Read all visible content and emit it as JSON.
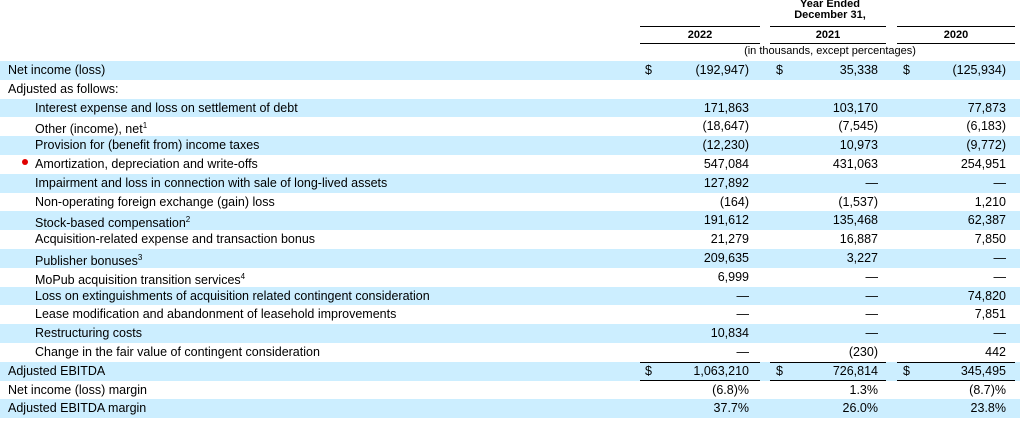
{
  "header": {
    "period": "Year Ended",
    "date": "December 31,",
    "years": [
      "2022",
      "2021",
      "2020"
    ],
    "unit_note": "(in thousands, except percentages)"
  },
  "net_income": {
    "label": "Net income (loss)",
    "currency": "$",
    "values": [
      "(192,947)",
      "35,338",
      "(125,934)"
    ]
  },
  "adjustments": {
    "label": "Adjusted as follows:",
    "items": [
      {
        "label": "Interest expense and loss on settlement of debt",
        "values": [
          "171,863",
          "103,170",
          "77,873"
        ]
      },
      {
        "label": "Other (income), net",
        "note": "1",
        "values": [
          "(18,647)",
          "(7,545)",
          "(6,183)"
        ]
      },
      {
        "label": "Provision for (benefit from) income taxes",
        "values": [
          "(12,230)",
          "10,973",
          "(9,772)"
        ]
      },
      {
        "label": "Amortization, depreciation and write-offs",
        "values": [
          "547,084",
          "431,063",
          "254,951"
        ]
      },
      {
        "label": "Impairment and loss in connection with sale of long-lived assets",
        "values": [
          "127,892",
          "—",
          "—"
        ]
      },
      {
        "label": "Non-operating foreign exchange (gain) loss",
        "values": [
          "(164)",
          "(1,537)",
          "1,210"
        ]
      },
      {
        "label": "Stock-based compensation",
        "note": "2",
        "values": [
          "191,612",
          "135,468",
          "62,387"
        ]
      },
      {
        "label": "Acquisition-related expense and transaction bonus",
        "values": [
          "21,279",
          "16,887",
          "7,850"
        ]
      },
      {
        "label": "Publisher bonuses",
        "note": "3",
        "values": [
          "209,635",
          "3,227",
          "—"
        ]
      },
      {
        "label": "MoPub acquisition transition services",
        "note": "4",
        "values": [
          "6,999",
          "—",
          "—"
        ]
      },
      {
        "label": "Loss on extinguishments of acquisition related contingent consideration",
        "values": [
          "—",
          "—",
          "74,820"
        ]
      },
      {
        "label": "Lease modification and abandonment of leasehold improvements",
        "values": [
          "—",
          "—",
          "7,851"
        ]
      },
      {
        "label": "Restructuring costs",
        "values": [
          "10,834",
          "—",
          "—"
        ]
      },
      {
        "label": "Change in the fair value of contingent consideration",
        "values": [
          "—",
          "(230)",
          "442"
        ]
      }
    ]
  },
  "adjusted_ebitda": {
    "label": "Adjusted EBITDA",
    "currency": "$",
    "values": [
      "1,063,210",
      "726,814",
      "345,495"
    ]
  },
  "margins": [
    {
      "label": "Net income (loss) margin",
      "values": [
        "(6.8)%",
        "1.3%",
        "(8.7)%"
      ]
    },
    {
      "label": "Adjusted EBITDA margin",
      "values": [
        "37.7%",
        "26.0%",
        "23.8%"
      ]
    }
  ]
}
